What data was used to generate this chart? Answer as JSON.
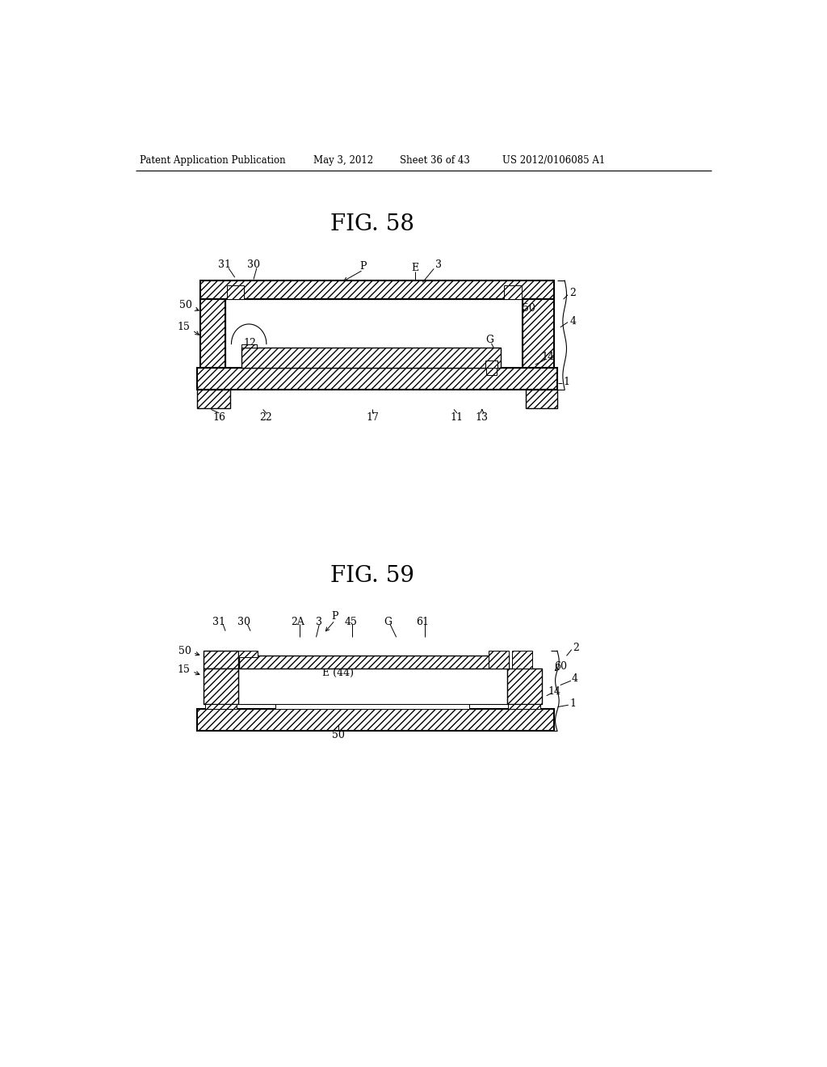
{
  "bg_color": "#ffffff",
  "header_text": "Patent Application Publication",
  "header_date": "May 3, 2012",
  "header_sheet": "Sheet 36 of 43",
  "header_patent": "US 2012/0106085 A1",
  "fig58_title": "FIG. 58",
  "fig59_title": "FIG. 59"
}
